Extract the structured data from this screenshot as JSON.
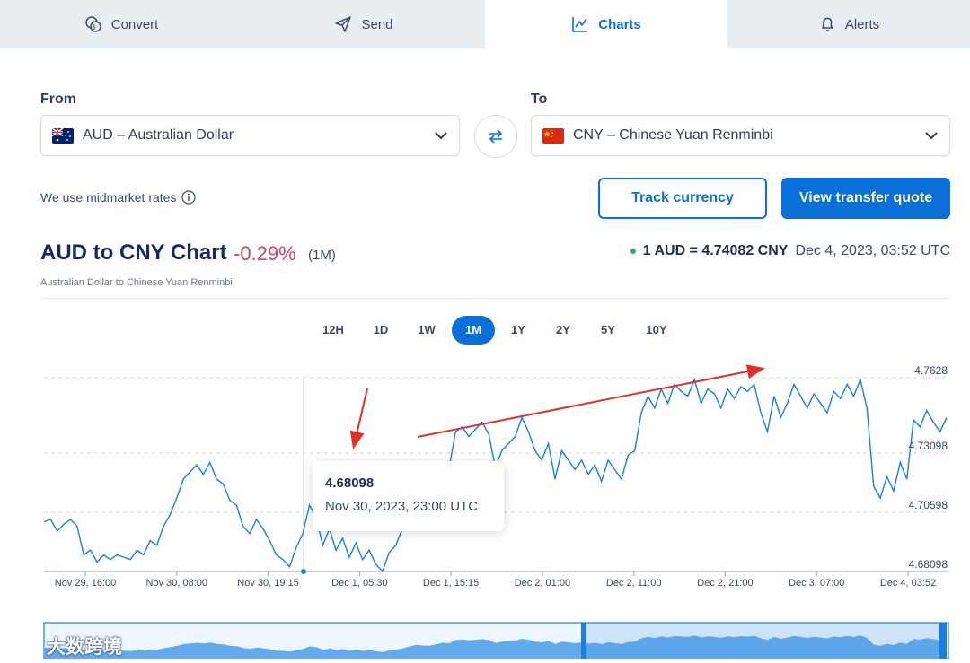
{
  "tabs": [
    {
      "label": "Convert",
      "icon": "coins-icon"
    },
    {
      "label": "Send",
      "icon": "send-icon"
    },
    {
      "label": "Charts",
      "icon": "chart-icon"
    },
    {
      "label": "Alerts",
      "icon": "bell-icon"
    }
  ],
  "converter": {
    "from_label": "From",
    "from_value": "AUD – Australian Dollar",
    "to_label": "To",
    "to_value": "CNY – Chinese Yuan Renminbi"
  },
  "midmarket_note": "We use midmarket rates",
  "buttons": {
    "track": "Track currency",
    "quote": "View transfer quote"
  },
  "header": {
    "title": "AUD to CNY Chart",
    "change": "-0.29%",
    "period": "(1M)",
    "subtitle": "Australian Dollar to Chinese Yuan Renminbi",
    "rate": "1 AUD = 4.74082 CNY",
    "timestamp": "Dec 4, 2023, 03:52 UTC"
  },
  "periods": [
    "12H",
    "1D",
    "1W",
    "1M",
    "1Y",
    "2Y",
    "5Y",
    "10Y"
  ],
  "active_period": "1M",
  "tooltip": {
    "value": "4.68098",
    "date": "Nov 30, 2023, 23:00 UTC"
  },
  "watermark": "大数跨境",
  "colors": {
    "accent": "#0a6fd6",
    "line": "#1a7fe0",
    "negative": "#d0455f",
    "live_dot": "#22b455",
    "annotation_arrow": "#e0302a"
  },
  "chart_data": {
    "type": "line",
    "y_ticks": [
      "4.7628",
      "4.73098",
      "4.70598",
      "4.68098"
    ],
    "ylim": [
      4.68098,
      4.7628
    ],
    "x_ticks": [
      "Nov 29, 16:00",
      "Nov 30, 08:00",
      "Nov 30, 19:15",
      "Dec 1, 05:30",
      "Dec 1, 15:15",
      "Dec 2, 01:00",
      "Dec 2, 11:00",
      "Dec 2, 21:00",
      "Dec 3, 07:00",
      "Dec 4, 03:52"
    ],
    "grid": "horizontal dashed",
    "series": [
      {
        "values": [
          4.702,
          4.703,
          4.698,
          4.701,
          4.703,
          4.7,
          4.688,
          4.69,
          4.685,
          4.688,
          4.686,
          4.688,
          4.687,
          4.686,
          4.69,
          4.688,
          4.694,
          4.692,
          4.7,
          4.705,
          4.712,
          4.72,
          4.723,
          4.726,
          4.722,
          4.727,
          4.72,
          4.718,
          4.711,
          4.709,
          4.7,
          4.697,
          4.703,
          4.699,
          4.694,
          4.688,
          4.686,
          4.683,
          4.691,
          4.697,
          4.709,
          4.704,
          4.692,
          4.699,
          4.69,
          4.695,
          4.687,
          4.693,
          4.686,
          4.69,
          4.684,
          4.681,
          4.689,
          4.692,
          4.699,
          4.708,
          4.716,
          4.713,
          4.712,
          4.718,
          4.726,
          4.724,
          4.74,
          4.742,
          4.738,
          4.741,
          4.744,
          4.739,
          4.725,
          4.732,
          4.735,
          4.738,
          4.746,
          4.74,
          4.732,
          4.728,
          4.735,
          4.72,
          4.732,
          4.728,
          4.724,
          4.728,
          4.722,
          4.726,
          4.719,
          4.728,
          4.724,
          4.72,
          4.73,
          4.732,
          4.748,
          4.755,
          4.75,
          4.758,
          4.752,
          4.76,
          4.757,
          4.755,
          4.762,
          4.752,
          4.758,
          4.756,
          4.75,
          4.758,
          4.754,
          4.759,
          4.757,
          4.76,
          4.748,
          4.74,
          4.755,
          4.746,
          4.752,
          4.76,
          4.755,
          4.75,
          4.756,
          4.752,
          4.748,
          4.757,
          4.754,
          4.76,
          4.755,
          4.762,
          4.75,
          4.717,
          4.712,
          4.721,
          4.715,
          4.727,
          4.72,
          4.745,
          4.742,
          4.749,
          4.744,
          4.74,
          4.746
        ]
      }
    ]
  }
}
